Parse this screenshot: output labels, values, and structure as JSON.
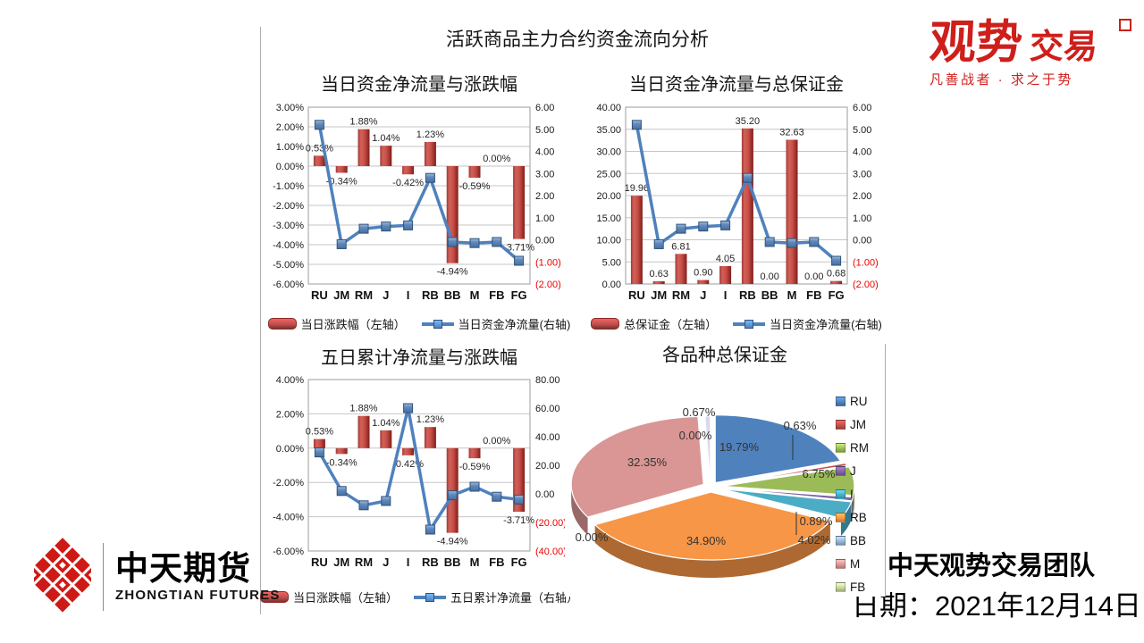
{
  "slide": {
    "main_title": "活跃商品主力合约资金流向分析"
  },
  "footer": {
    "team": "中天观势交易团队",
    "date": "日期：2021年12月14日"
  },
  "logos": {
    "guanshi": {
      "part1": "观势",
      "part2": "交易",
      "tagline": "凡善战者 · 求之于势",
      "color": "#CE1F1B",
      "seal_icon": "seal-stamp"
    },
    "zhongtian": {
      "cn": "中天期货",
      "en": "ZHONGTIAN FUTURES",
      "mark_color": "#CE1A16",
      "mark_icon": "diamond-lattice"
    }
  },
  "chart_data": [
    {
      "id": "daily-netflow-vs-change",
      "type": "combo-bar-line",
      "title": "当日资金净流量与涨跌幅",
      "categories": [
        "RU",
        "JM",
        "RM",
        "J",
        "I",
        "RB",
        "BB",
        "M",
        "FB",
        "FG"
      ],
      "series": [
        {
          "name": "当日涨跌幅（左轴）",
          "chart": "bar",
          "axis": "left",
          "color": "#C0504D",
          "values": [
            0.53,
            -0.34,
            1.88,
            1.04,
            -0.42,
            1.23,
            -4.94,
            -0.59,
            0.0,
            -3.71
          ],
          "labels": [
            "0.53%",
            "-0.34%",
            "1.88%",
            "1.04%",
            "-0.42%",
            "1.23%",
            "-4.94%",
            "-0.59%",
            "0.00%",
            "-3.71%"
          ]
        },
        {
          "name": "当日资金净流量(右轴)",
          "chart": "line",
          "axis": "right",
          "color": "#4F81BD",
          "values": [
            5.2,
            -0.2,
            0.5,
            0.6,
            0.65,
            2.8,
            -0.1,
            -0.15,
            -0.1,
            -0.95
          ]
        }
      ],
      "left_axis": {
        "max": 3,
        "min": -6,
        "ticks": [
          "3.00%",
          "2.00%",
          "1.00%",
          "0.00%",
          "-1.00%",
          "-2.00%",
          "-3.00%",
          "-4.00%",
          "-5.00%",
          "-6.00%"
        ]
      },
      "right_axis": {
        "max": 6,
        "min": -2,
        "ticks": [
          "6.00",
          "5.00",
          "4.00",
          "3.00",
          "2.00",
          "1.00",
          "0.00",
          "(1.00)",
          "(2.00)"
        ]
      }
    },
    {
      "id": "daily-netflow-vs-margin",
      "type": "combo-bar-line",
      "title": "当日资金净流量与总保证金",
      "categories": [
        "RU",
        "JM",
        "RM",
        "J",
        "I",
        "RB",
        "BB",
        "M",
        "FB",
        "FG"
      ],
      "series": [
        {
          "name": "总保证金（左轴）",
          "chart": "bar",
          "axis": "left",
          "color": "#C0504D",
          "values": [
            19.96,
            0.63,
            6.81,
            0.9,
            4.05,
            35.2,
            0.0,
            32.63,
            0.0,
            0.68
          ],
          "labels": [
            "19.96",
            "0.63",
            "6.81",
            "0.90",
            "4.05",
            "35.20",
            "0.00",
            "32.63",
            "0.00",
            "0.68"
          ]
        },
        {
          "name": "当日资金净流量(右轴)",
          "chart": "line",
          "axis": "right",
          "color": "#4F81BD",
          "values": [
            5.2,
            -0.2,
            0.5,
            0.6,
            0.65,
            2.8,
            -0.1,
            -0.15,
            -0.1,
            -0.95
          ]
        }
      ],
      "left_axis": {
        "max": 40,
        "min": 0,
        "ticks": [
          "40.00",
          "35.00",
          "30.00",
          "25.00",
          "20.00",
          "15.00",
          "10.00",
          "5.00",
          "0.00"
        ]
      },
      "right_axis": {
        "max": 6,
        "min": -2,
        "ticks": [
          "6.00",
          "5.00",
          "4.00",
          "3.00",
          "2.00",
          "1.00",
          "0.00",
          "(1.00)",
          "(2.00)"
        ]
      }
    },
    {
      "id": "fiveday-netflow-vs-change",
      "type": "combo-bar-line",
      "title": "五日累计净流量与涨跌幅",
      "categories": [
        "RU",
        "JM",
        "RM",
        "J",
        "I",
        "RB",
        "BB",
        "M",
        "FB",
        "FG"
      ],
      "series": [
        {
          "name": "当日涨跌幅（左轴）",
          "chart": "bar",
          "axis": "left",
          "color": "#C0504D",
          "values": [
            0.53,
            -0.34,
            1.88,
            1.04,
            -0.42,
            1.23,
            -4.94,
            -0.59,
            0.0,
            -3.71
          ],
          "labels": [
            "0.53%",
            "-0.34%",
            "1.88%",
            "1.04%",
            "-0.42%",
            "1.23%",
            "-4.94%",
            "-0.59%",
            "0.00%",
            "-3.71%"
          ]
        },
        {
          "name": "五日累计净流量（右轴）",
          "chart": "line",
          "axis": "right",
          "color": "#4F81BD",
          "values": [
            29,
            2,
            -8,
            -5,
            60,
            -25,
            -1,
            5,
            -2,
            -4
          ]
        }
      ],
      "left_axis": {
        "max": 4,
        "min": -6,
        "ticks": [
          "4.00%",
          "2.00%",
          "0.00%",
          "-2.00%",
          "-4.00%",
          "-6.00%"
        ]
      },
      "right_axis": {
        "max": 80,
        "min": -40,
        "ticks": [
          "80.00",
          "60.00",
          "40.00",
          "20.00",
          "0.00",
          "(20.00)",
          "(40.00)"
        ]
      }
    },
    {
      "id": "total-margin-pie",
      "type": "pie",
      "title": "各品种总保证金",
      "labels": [
        "RU",
        "JM",
        "RM",
        "J",
        "I",
        "RB",
        "BB",
        "M",
        "FB",
        "FG"
      ],
      "values": [
        19.79,
        0.63,
        6.75,
        0.89,
        4.02,
        34.9,
        0.0,
        32.35,
        0.0,
        0.67
      ],
      "display_labels": [
        "19.79%",
        "0.63%",
        "6.75%",
        "0.89%",
        "4.02%",
        "34.90%",
        "0.00%",
        "32.35%",
        "0.00%",
        "0.67%"
      ],
      "colors": [
        "#4F81BD",
        "#C0504D",
        "#9BBB59",
        "#8064A2",
        "#4BACC6",
        "#F79646",
        "#95B3D7",
        "#D99694",
        "#C3D69B",
        "#DCD7EC"
      ],
      "legend": [
        "RU",
        "JM",
        "RM",
        "J",
        "I",
        "RB",
        "BB",
        "M",
        "FB"
      ]
    }
  ]
}
